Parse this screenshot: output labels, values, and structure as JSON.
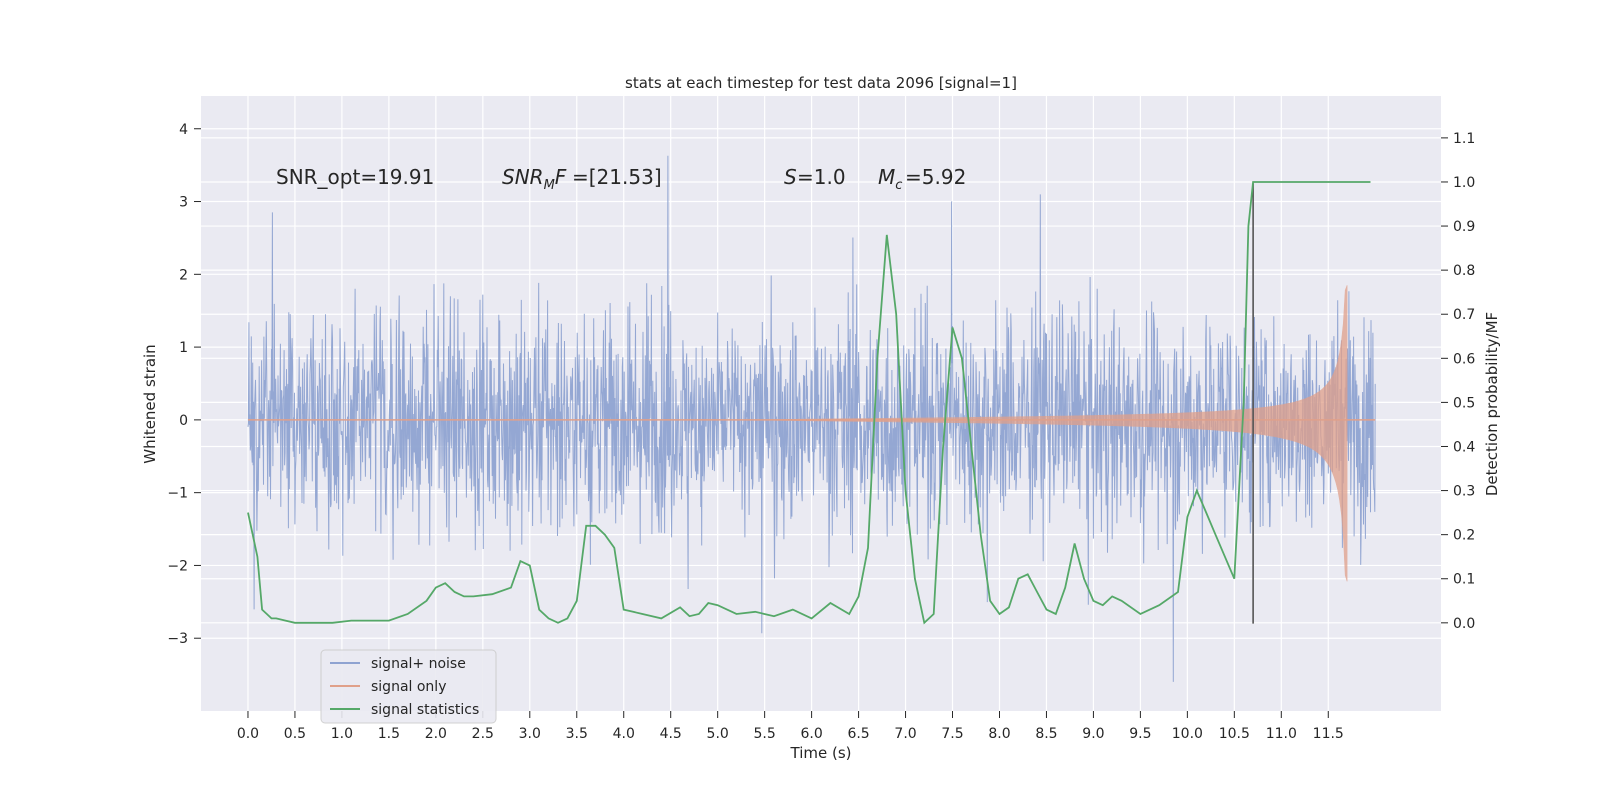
{
  "chart_data": {
    "type": "line",
    "title": "stats at each timestep for test data 2096 [signal=1]",
    "xlabel": "Time (s)",
    "ylabel": "Whitened strain",
    "ylabel_right": "Detection probability/MF",
    "xlim": [
      -0.5,
      12.7
    ],
    "ylim": [
      -4.0,
      4.45
    ],
    "ylim_right": [
      -0.2,
      1.195
    ],
    "x_ticks": [
      "0.0",
      "0.5",
      "1.0",
      "1.5",
      "2.0",
      "2.5",
      "3.0",
      "3.5",
      "4.0",
      "4.5",
      "5.0",
      "5.5",
      "6.0",
      "6.5",
      "7.0",
      "7.5",
      "8.0",
      "8.5",
      "9.0",
      "9.5",
      "10.0",
      "10.5",
      "11.0",
      "11.5"
    ],
    "y_ticks": [
      "−3",
      "−2",
      "−1",
      "0",
      "1",
      "2",
      "3",
      "4"
    ],
    "y_ticks_right": [
      "0.0",
      "0.1",
      "0.2",
      "0.3",
      "0.4",
      "0.5",
      "0.6",
      "0.7",
      "0.8",
      "0.9",
      "1.0",
      "1.1"
    ],
    "annotations": {
      "snr_opt": "SNR_opt=19.91",
      "snr_mf": "=[21.53]",
      "s_value": "=1.0",
      "mc_value": "=5.92"
    },
    "series": [
      {
        "name": "signal+ noise",
        "color": "#8fa3d1",
        "description_range": [
          -3.6,
          4.1
        ],
        "x_range": [
          0,
          12.0
        ]
      },
      {
        "name": "signal only",
        "color": "#e0a08a",
        "peak": 1.85,
        "merger_time": 11.7
      },
      {
        "name": "signal statistics",
        "color": "#55a868",
        "axis": "right",
        "x": [
          0.0,
          0.1,
          0.15,
          0.25,
          0.3,
          0.4,
          0.5,
          0.7,
          0.9,
          1.1,
          1.3,
          1.5,
          1.7,
          1.9,
          2.0,
          2.1,
          2.2,
          2.3,
          2.4,
          2.6,
          2.8,
          2.9,
          3.0,
          3.1,
          3.2,
          3.3,
          3.4,
          3.5,
          3.6,
          3.7,
          3.8,
          3.9,
          4.0,
          4.1,
          4.2,
          4.4,
          4.6,
          4.7,
          4.8,
          4.9,
          5.0,
          5.2,
          5.4,
          5.6,
          5.8,
          6.0,
          6.2,
          6.4,
          6.5,
          6.6,
          6.7,
          6.8,
          6.9,
          7.0,
          7.1,
          7.2,
          7.3,
          7.4,
          7.5,
          7.6,
          7.7,
          7.8,
          7.9,
          8.0,
          8.1,
          8.2,
          8.3,
          8.4,
          8.5,
          8.6,
          8.7,
          8.8,
          8.9,
          9.0,
          9.1,
          9.2,
          9.3,
          9.5,
          9.7,
          9.9,
          10.0,
          10.1,
          10.2,
          10.3,
          10.4,
          10.5,
          10.6,
          10.65,
          10.7,
          10.75,
          10.8,
          10.9,
          11.0,
          11.5,
          11.95
        ],
        "values": [
          0.25,
          0.15,
          0.03,
          0.01,
          0.01,
          0.005,
          0.0,
          0.0,
          0.0,
          0.005,
          0.005,
          0.005,
          0.02,
          0.05,
          0.08,
          0.09,
          0.07,
          0.06,
          0.06,
          0.065,
          0.08,
          0.14,
          0.13,
          0.03,
          0.01,
          0.0,
          0.01,
          0.05,
          0.22,
          0.22,
          0.2,
          0.17,
          0.03,
          0.025,
          0.02,
          0.01,
          0.035,
          0.015,
          0.02,
          0.045,
          0.04,
          0.02,
          0.025,
          0.015,
          0.03,
          0.01,
          0.045,
          0.02,
          0.06,
          0.17,
          0.6,
          0.88,
          0.7,
          0.3,
          0.1,
          0.0,
          0.02,
          0.4,
          0.67,
          0.6,
          0.4,
          0.2,
          0.05,
          0.02,
          0.035,
          0.1,
          0.11,
          0.07,
          0.03,
          0.02,
          0.08,
          0.18,
          0.1,
          0.05,
          0.04,
          0.06,
          0.05,
          0.02,
          0.04,
          0.07,
          0.24,
          0.3,
          0.25,
          0.2,
          0.15,
          0.1,
          0.5,
          0.9,
          1.0,
          1.0,
          1.0,
          1.0,
          1.0,
          1.0,
          1.0
        ]
      }
    ],
    "vline_x": 10.7,
    "legend": {
      "position": "lower-left",
      "entries": [
        "signal+ noise",
        "signal only",
        "signal statistics"
      ]
    },
    "colors": {
      "plot_bg": "#eaeaf2",
      "grid": "#ffffff",
      "noise": "#8fa3d1",
      "signal": "#e0a08a",
      "stats": "#55a868",
      "vline": "#555555"
    }
  }
}
